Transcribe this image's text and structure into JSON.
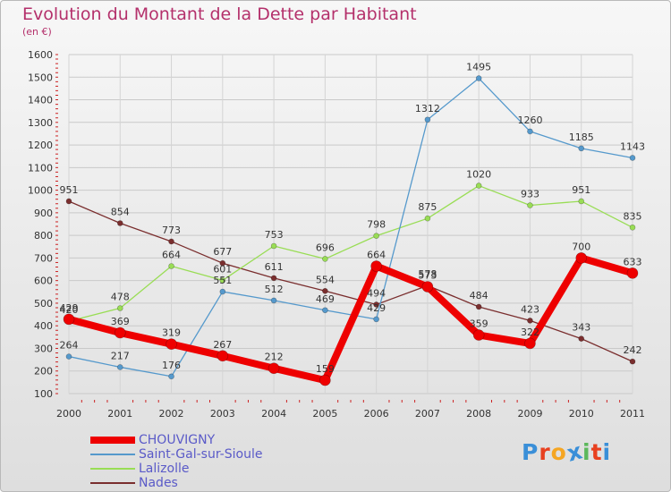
{
  "title": "Evolution du Montant de la Dette par Habitant",
  "subtitle": "(en €)",
  "logo": {
    "letters": [
      "P",
      "r",
      "o",
      "x",
      "i",
      "t",
      "i"
    ],
    "colors": [
      "#3a8fd8",
      "#e8401f",
      "#f5a623",
      "#3a8fd8",
      "#5cb85c",
      "#e8401f",
      "#3a8fd8"
    ]
  },
  "chart_data": {
    "type": "line",
    "title": "Evolution du Montant de la Dette par Habitant",
    "ylabel": "(en €)",
    "xlabel": "",
    "x": [
      "2000",
      "2001",
      "2002",
      "2003",
      "2004",
      "2005",
      "2006",
      "2007",
      "2008",
      "2009",
      "2010",
      "2011"
    ],
    "ylim": [
      100,
      1600
    ],
    "yticks": [
      "100",
      "200",
      "300",
      "400",
      "500",
      "600",
      "700",
      "800",
      "900",
      "1000",
      "1100",
      "1200",
      "1300",
      "1400",
      "1500",
      "1600"
    ],
    "grid": true,
    "legend": "bottom-left",
    "series": [
      {
        "name": "Nades",
        "color": "#7a2e2e",
        "values": [
          951,
          854,
          773,
          677,
          611,
          554,
          494,
          578,
          484,
          423,
          343,
          242
        ]
      },
      {
        "name": "Lalizolle",
        "color": "#99dd55",
        "values": [
          420,
          478,
          664,
          601,
          753,
          696,
          798,
          875,
          1020,
          933,
          951,
          835
        ]
      },
      {
        "name": "Saint-Gal-sur-Sioule",
        "color": "#5599cc",
        "values": [
          264,
          217,
          176,
          551,
          512,
          469,
          429,
          1312,
          1495,
          1260,
          1185,
          1143
        ]
      },
      {
        "name": "CHOUVIGNY",
        "color": "#ee0000",
        "values": [
          429,
          369,
          319,
          267,
          212,
          159,
          664,
          573,
          359,
          322,
          700,
          633
        ]
      }
    ]
  }
}
